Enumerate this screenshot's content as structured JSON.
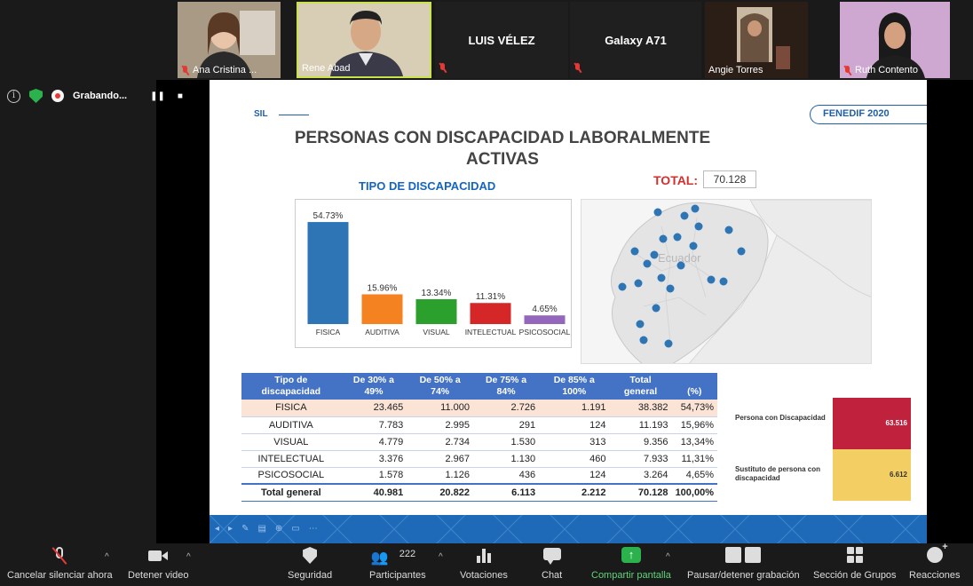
{
  "participants": [
    {
      "name": "Ana Cristina ...",
      "muted": true,
      "video": true
    },
    {
      "name": "Rene Abad",
      "muted": false,
      "video": true
    },
    {
      "name": "LUIS VÉLEZ",
      "muted": true,
      "video": false
    },
    {
      "name": "Galaxy A71",
      "muted": true,
      "video": false
    },
    {
      "name": "Angie Torres",
      "muted": false,
      "video": true
    },
    {
      "name": "Ruth Contento",
      "muted": true,
      "video": true
    }
  ],
  "recording": {
    "label": "Grabando...",
    "pause": "❚❚",
    "stop": "■"
  },
  "slide": {
    "sil": "SIL",
    "badge": "FENEDIF 2020",
    "title_line1": "PERSONAS CON DISCAPACIDAD LABORALMENTE",
    "title_line2": "ACTIVAS",
    "chart_title": "TIPO DE DISCAPACIDAD",
    "total_label": "TOTAL:",
    "total_value": "70.128",
    "map_label": "Ecuador",
    "table": {
      "headers": [
        "Tipo de discapacidad",
        "De 30% a 49%",
        "De 50% a 74%",
        "De 75% a 84%",
        "De 85% a 100%",
        "Total general",
        "(%)"
      ],
      "rows": [
        [
          "FISICA",
          "23.465",
          "11.000",
          "2.726",
          "1.191",
          "38.382",
          "54,73%"
        ],
        [
          "AUDITIVA",
          "7.783",
          "2.995",
          "291",
          "124",
          "11.193",
          "15,96%"
        ],
        [
          "VISUAL",
          "4.779",
          "2.734",
          "1.530",
          "313",
          "9.356",
          "13,34%"
        ],
        [
          "INTELECTUAL",
          "3.376",
          "2.967",
          "1.130",
          "460",
          "7.933",
          "11,31%"
        ],
        [
          "PSICOSOCIAL",
          "1.578",
          "1.126",
          "436",
          "124",
          "3.264",
          "4,65%"
        ]
      ],
      "total": [
        "Total general",
        "40.981",
        "20.822",
        "6.113",
        "2.212",
        "70.128",
        "100,00%"
      ]
    },
    "side_panel": [
      {
        "label": "Persona con Discapacidad",
        "value": "63.516",
        "color": "#c0223e",
        "text_color": "#ffffff"
      },
      {
        "label": "Sustituto de persona con discapacidad",
        "value": "6.612",
        "color": "#f3cf63",
        "text_color": "#333333"
      }
    ]
  },
  "chart_data": {
    "type": "bar",
    "title": "TIPO DE DISCAPACIDAD",
    "categories": [
      "FISICA",
      "AUDITIVA",
      "VISUAL",
      "INTELECTUAL",
      "PSICOSOCIAL"
    ],
    "values": [
      54.73,
      15.96,
      13.34,
      11.31,
      4.65
    ],
    "value_labels": [
      "54.73%",
      "15.96%",
      "13.34%",
      "11.31%",
      "4.65%"
    ],
    "colors": [
      "#2e75b6",
      "#f58220",
      "#2ca02c",
      "#d62728",
      "#9467bd"
    ],
    "ylim": [
      0,
      60
    ],
    "grid": false,
    "legend": "none"
  },
  "toolbar": {
    "mute": "Cancelar silenciar ahora",
    "video": "Detener video",
    "security": "Seguridad",
    "participants": "Participantes",
    "participants_count": "222",
    "polls": "Votaciones",
    "chat": "Chat",
    "share": "Compartir pantalla",
    "recording": "Pausar/detener grabación",
    "breakout": "Sección de Grupos",
    "reactions": "Reacciones",
    "caret": "^"
  }
}
